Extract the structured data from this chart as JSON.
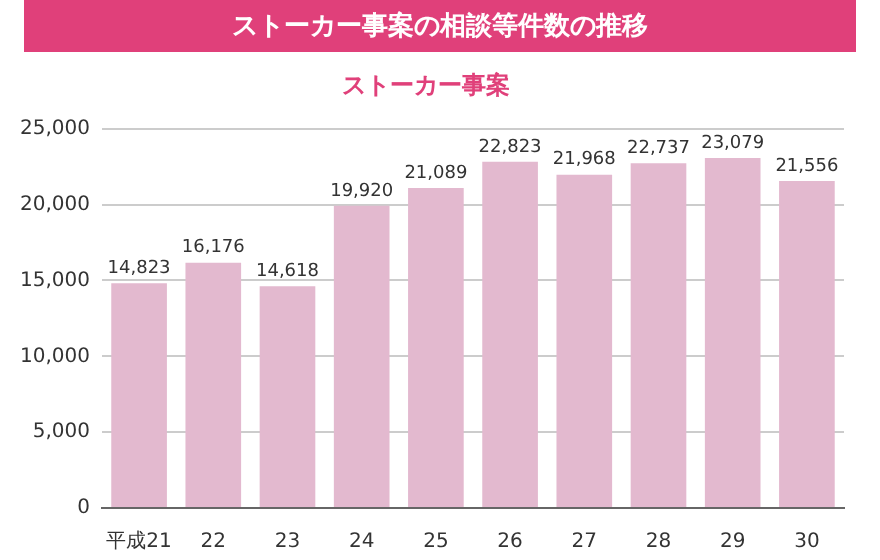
{
  "chart_data": {
    "type": "bar",
    "title": "ストーカー事案の相談等件数の推移",
    "subtitle": "ストーカー事案",
    "categories": [
      "平成21",
      "22",
      "23",
      "24",
      "25",
      "26",
      "27",
      "28",
      "29",
      "30"
    ],
    "values": [
      14823,
      16176,
      14618,
      19920,
      21089,
      22823,
      21968,
      22737,
      23079,
      21556
    ],
    "color": "#e3b9cf",
    "value_labels": [
      "14,823",
      "16,176",
      "14,618",
      "19,920",
      "21,089",
      "22,823",
      "21,968",
      "22,737",
      "23,079",
      "21,556"
    ],
    "ylim": [
      0,
      25000
    ],
    "yticks": [
      0,
      {
        "value": 5000,
        "label": "5,000"
      },
      {
        "value": 10000,
        "label": "10,000"
      },
      {
        "value": 15000,
        "label": "15,000"
      },
      {
        "value": 20000,
        "label": "20,000"
      },
      {
        "value": 25000,
        "label": "25,000"
      }
    ],
    "grid": "y"
  }
}
